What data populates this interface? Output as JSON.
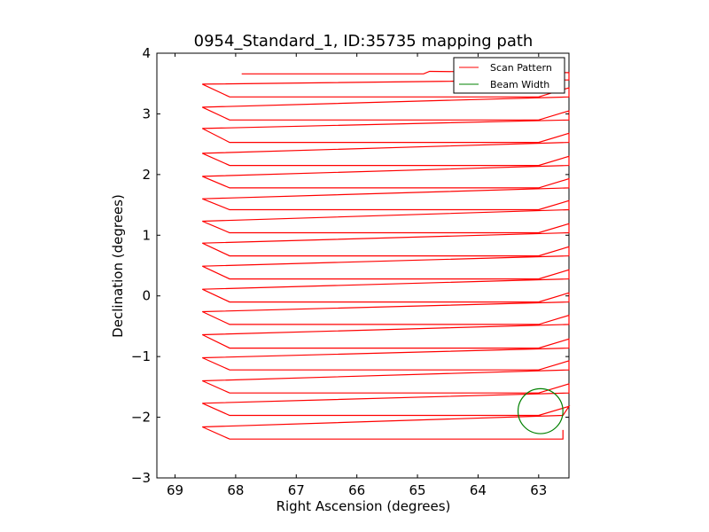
{
  "chart_data": {
    "type": "line",
    "title": "0954_Standard_1, ID:35735 mapping path",
    "xlabel": "Right Ascension (degrees)",
    "ylabel": "Declination (degrees)",
    "xlim": [
      69.3,
      62.5
    ],
    "ylim": [
      -3,
      4
    ],
    "x_inverted": true,
    "xticks": [
      69,
      68,
      67,
      66,
      65,
      64,
      63
    ],
    "yticks": [
      -3,
      -2,
      -1,
      0,
      1,
      2,
      3,
      4
    ],
    "grid": false,
    "legend": {
      "placement": "top-right",
      "entries": [
        {
          "label": "Scan Pattern",
          "color": "#ff0000",
          "kind": "line"
        },
        {
          "label": "Beam Width",
          "color": "#008000",
          "kind": "line"
        }
      ]
    },
    "series": [
      {
        "name": "Scan Pattern",
        "color": "#ff0000",
        "first_row": {
          "start": [
            67.9,
            3.66
          ],
          "end": [
            62.5,
            3.68
          ],
          "jog": [
            64.8,
            3.7
          ]
        },
        "rows": [
          {
            "left_dec": 3.49,
            "right_dec": 3.28,
            "right_start": 63.0,
            "right_end": 62.5
          },
          {
            "left_dec": 3.11,
            "right_dec": 2.9,
            "right_start": 63.0,
            "right_end": 62.5
          },
          {
            "left_dec": 2.76,
            "right_dec": 2.53,
            "right_start": 63.0,
            "right_end": 62.5
          },
          {
            "left_dec": 2.35,
            "right_dec": 2.15,
            "right_start": 63.0,
            "right_end": 62.5
          },
          {
            "left_dec": 1.97,
            "right_dec": 1.78,
            "right_start": 63.0,
            "right_end": 62.5
          },
          {
            "left_dec": 1.6,
            "right_dec": 1.42,
            "right_start": 63.0,
            "right_end": 62.5
          },
          {
            "left_dec": 1.23,
            "right_dec": 1.04,
            "right_start": 63.0,
            "right_end": 62.5
          },
          {
            "left_dec": 0.87,
            "right_dec": 0.66,
            "right_start": 63.0,
            "right_end": 62.5
          },
          {
            "left_dec": 0.49,
            "right_dec": 0.28,
            "right_start": 63.0,
            "right_end": 62.5
          },
          {
            "left_dec": 0.11,
            "right_dec": -0.1,
            "right_start": 63.0,
            "right_end": 62.5
          },
          {
            "left_dec": -0.26,
            "right_dec": -0.47,
            "right_start": 63.0,
            "right_end": 62.5
          },
          {
            "left_dec": -0.64,
            "right_dec": -0.86,
            "right_start": 63.0,
            "right_end": 62.5
          },
          {
            "left_dec": -1.02,
            "right_dec": -1.22,
            "right_start": 63.0,
            "right_end": 62.5
          },
          {
            "left_dec": -1.4,
            "right_dec": -1.6,
            "right_start": 63.0,
            "right_end": 62.5
          },
          {
            "left_dec": -1.77,
            "right_dec": -1.97,
            "right_start": 63.0,
            "right_end": 62.5
          },
          {
            "left_dec": -2.16,
            "right_dec": -2.36,
            "right_start": 62.6,
            "right_end": 62.6
          }
        ],
        "left_ra": 68.55,
        "step_ra": 68.1
      },
      {
        "name": "Beam Width",
        "color": "#008000",
        "center": [
          62.97,
          -1.9
        ],
        "radius_dec": 0.37
      }
    ]
  }
}
